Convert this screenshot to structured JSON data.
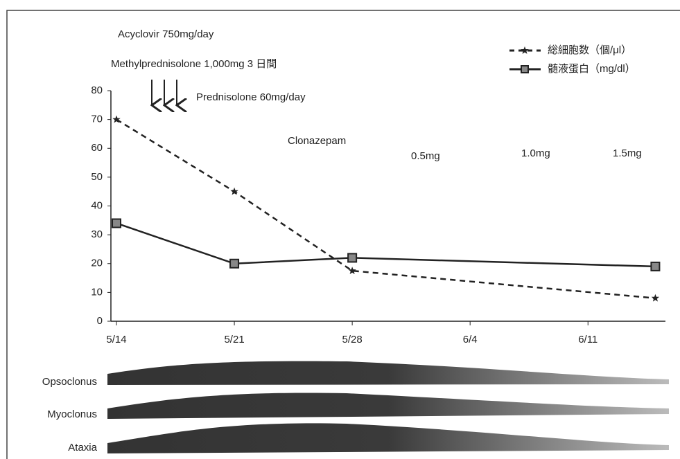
{
  "chart_data": {
    "type": "line",
    "x": [
      0,
      7,
      14,
      32
    ],
    "xlim": [
      -0.33,
      32.6
    ],
    "xticks": [
      {
        "value": 0,
        "label": "5/14"
      },
      {
        "value": 7,
        "label": "5/21"
      },
      {
        "value": 14,
        "label": "5/28"
      },
      {
        "value": 21,
        "label": "6/4"
      },
      {
        "value": 28,
        "label": "6/11"
      }
    ],
    "ylim": [
      0,
      80
    ],
    "yticks": [
      0,
      10,
      20,
      30,
      40,
      50,
      60,
      70,
      80
    ],
    "series": [
      {
        "name": "総細胞数（個/μl）",
        "color": "#222222",
        "dash": true,
        "marker": "star",
        "values": [
          70,
          45,
          17.5,
          8
        ]
      },
      {
        "name": "髄液蛋白（mg/dl）",
        "color": "#222222",
        "dash": false,
        "marker": "square",
        "values": [
          34,
          20,
          22,
          19
        ]
      }
    ],
    "annotations": [
      "Acyclovir 750mg/day",
      "Methylprednisolone 1,000mg 3 日間",
      "Prednisolone 60mg/day",
      "Clonazepam",
      "0.5mg",
      "1.0mg",
      "1.5mg"
    ],
    "symptoms": [
      "Opsoclonus",
      "Myoclonus",
      "Ataxia"
    ]
  }
}
